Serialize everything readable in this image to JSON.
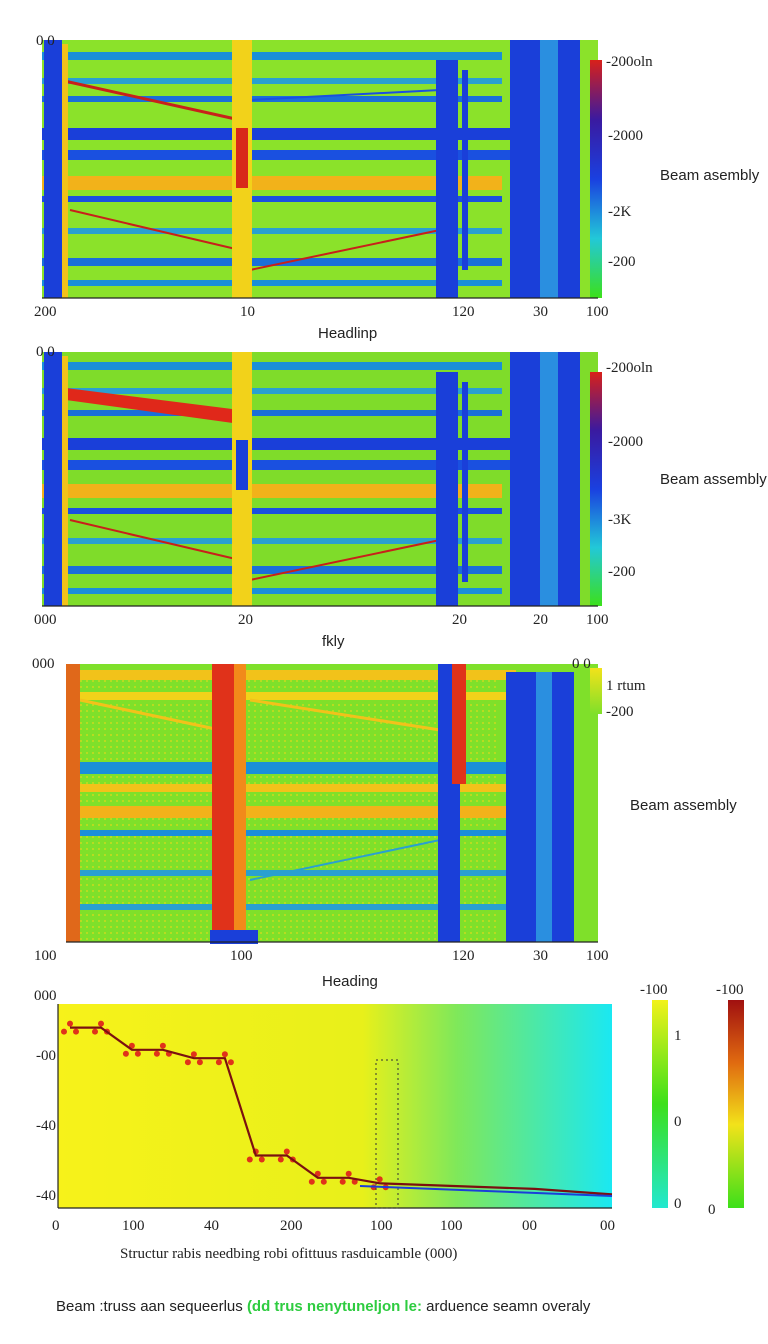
{
  "panels": [
    {
      "corner_label": "0 0",
      "x_ticks": [
        "200",
        "10",
        "120",
        "30",
        "100"
      ],
      "xlabel": "Headlinp",
      "side_label": "Beam asembly",
      "colorbar_ticks": [
        "-200oln",
        "-2000",
        "-2K",
        "-200"
      ],
      "colors": {
        "bg": "#8be22a",
        "beam": "#1a3fd9",
        "accent": "#f2c21a",
        "hot": "#d8281a"
      }
    },
    {
      "corner_label": "0 0",
      "x_ticks": [
        "000",
        "20",
        "20",
        "20",
        "100"
      ],
      "xlabel": "fkly",
      "side_label": "Beam assembly",
      "colorbar_ticks": [
        "-200oln",
        "-2000",
        "-3K",
        "-200"
      ],
      "colors": {
        "bg": "#7fdc2a",
        "beam": "#1a3fd9",
        "accent": "#f2c21a",
        "hot": "#d8281a"
      }
    },
    {
      "corner_label": "000",
      "corner_label_right": "0 0",
      "x_ticks": [
        "100",
        "100",
        "120",
        "30",
        "100"
      ],
      "xlabel": "Heading",
      "side_label": "Beam assembly",
      "colorbar_ticks": [
        "1 rtum",
        "-200"
      ],
      "colors": {
        "bg": "#7fe02a",
        "beam": "#1a3fd9",
        "accent": "#f2d21a",
        "hot": "#e0321a"
      }
    }
  ],
  "chart_data": {
    "type": "line",
    "title": "",
    "xlabel": "Structur rabis needbing robi ofittuus rasduicamble (000)",
    "ylabel": "",
    "x_ticks": [
      "0",
      "100",
      "40",
      "200",
      "100",
      "100",
      "00",
      "00"
    ],
    "y_ticks": [
      "000",
      "-00",
      "-40",
      "-40"
    ],
    "series": [
      {
        "x": [
          0,
          0.4,
          0.8,
          1.2,
          1.6,
          2.0,
          2.4,
          2.8,
          3.2,
          3.6,
          4.0,
          5.0,
          6.0,
          7.0
        ],
        "values": [
          0.2,
          0.2,
          1.0,
          1.0,
          1.3,
          1.3,
          4.8,
          4.8,
          5.6,
          5.6,
          5.8,
          5.9,
          6.0,
          6.2
        ]
      }
    ],
    "colorbar_left": {
      "top": "-100",
      "mid": "1",
      "low": "0",
      "bottom": "0"
    },
    "colorbar_right": {
      "top": "-100",
      "bottom": "0"
    }
  },
  "caption": {
    "before": "Beam :truss aan sequeerlus ",
    "highlight": "(dd trus nenytuneljon le:",
    "after": "  arduence seamn overaly"
  }
}
